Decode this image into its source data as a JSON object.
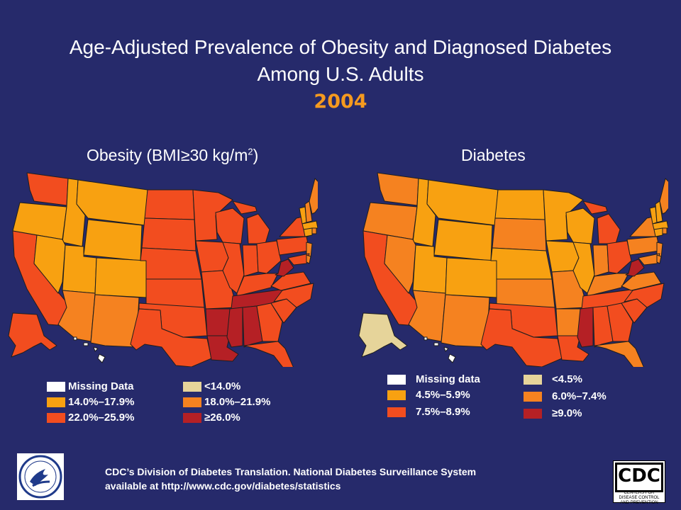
{
  "slide": {
    "title_line1": "Age-Adjusted Prevalence of Obesity and Diagnosed Diabetes",
    "title_line2": "Among U.S. Adults",
    "year": "2004",
    "source_line1": "CDC’s Division of Diabetes Translation. National Diabetes Surveillance System",
    "source_line2": "available at http://www.cdc.gov/diabetes/statistics"
  },
  "obesity_map": {
    "title_main": "Obesity (BMI≥30 kg/m",
    "title_sup": "2",
    "title_close": ")",
    "legend": [
      {
        "label": "Missing Data",
        "color": "#ffffff"
      },
      {
        "label": "14.0%–17.9%",
        "color": "#f8a111"
      },
      {
        "label": "22.0%–25.9%",
        "color": "#f24d1f"
      },
      {
        "label": "<14.0%",
        "color": "#e6d49a"
      },
      {
        "label": "18.0%–21.9%",
        "color": "#f58220"
      },
      {
        "label": "≥26.0%",
        "color": "#b52025"
      }
    ]
  },
  "diabetes_map": {
    "title": "Diabetes",
    "legend": [
      {
        "label": "Missing data",
        "color": "#ffffff"
      },
      {
        "label": "4.5%–5.9%",
        "color": "#f8a111"
      },
      {
        "label": "7.5%–8.9%",
        "color": "#f24d1f"
      },
      {
        "label": "<4.5%",
        "color": "#e6d49a"
      },
      {
        "label": "6.0%–7.4%",
        "color": "#f58220"
      },
      {
        "label": "≥9.0%",
        "color": "#b52025"
      }
    ]
  },
  "logos": {
    "cdc_text": "CDC",
    "cdc_subtext": "CENTERS FOR DISEASE CONTROL AND PREVENTION"
  }
}
